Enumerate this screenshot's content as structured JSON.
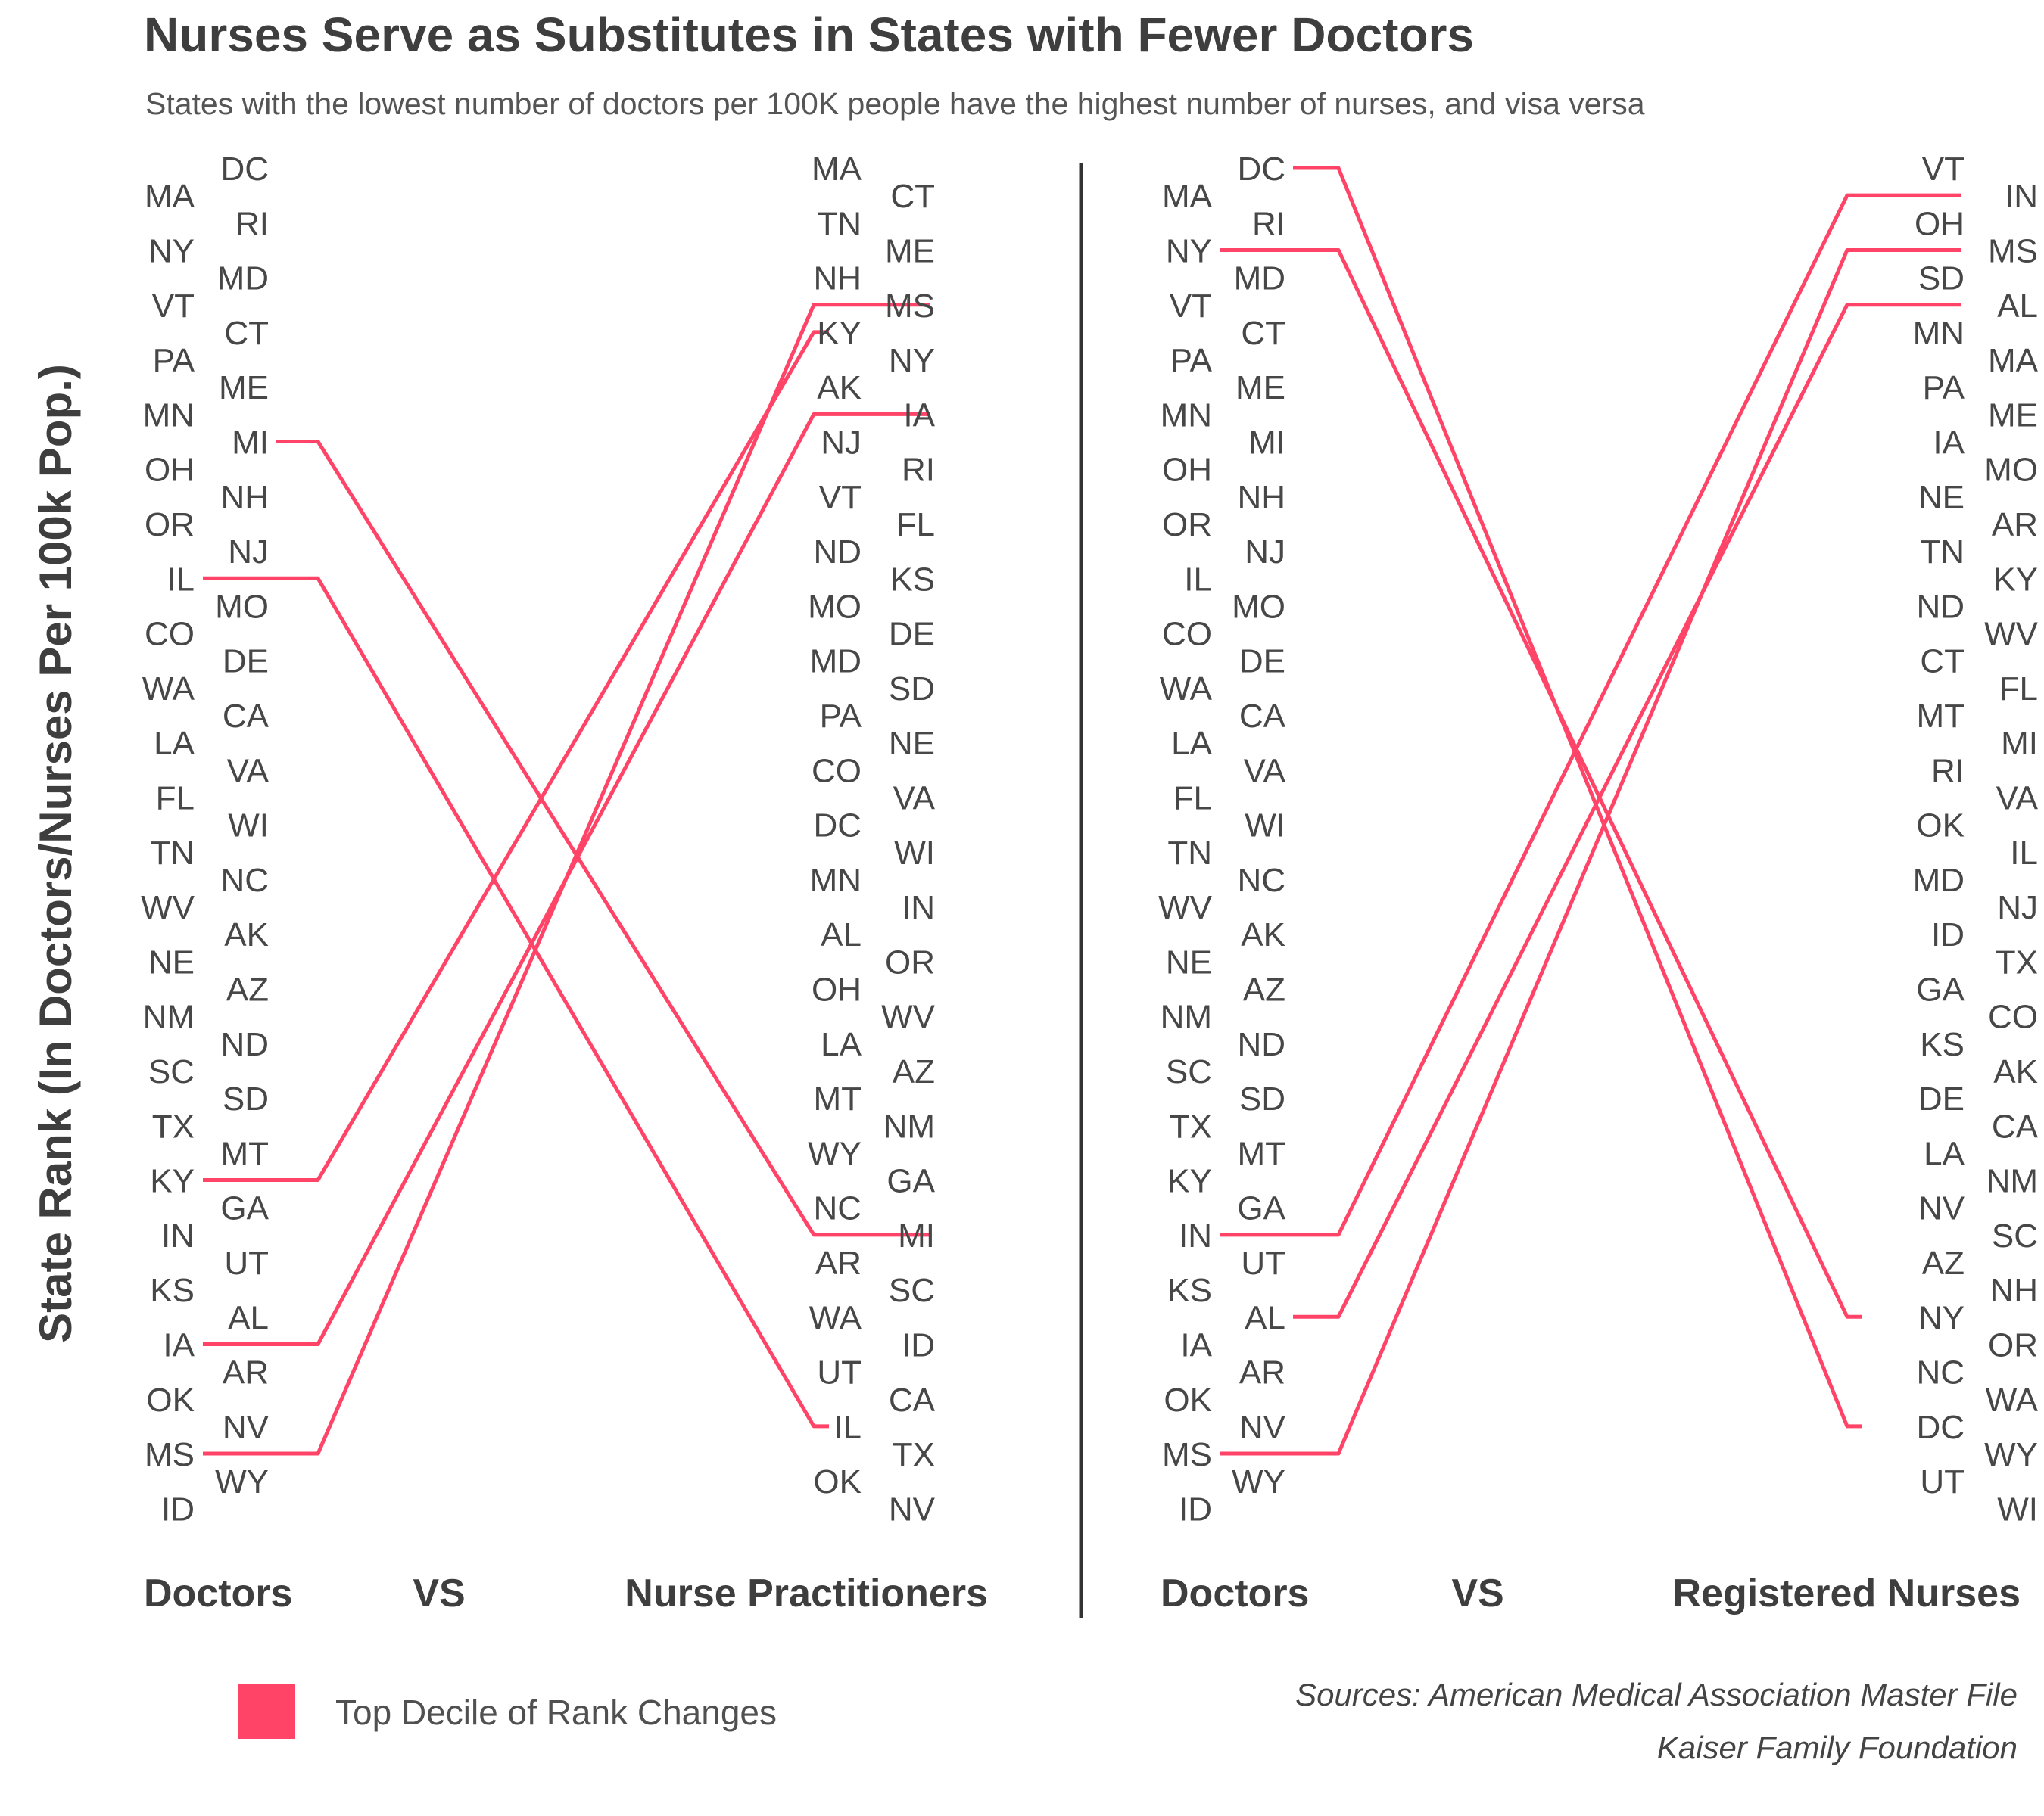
{
  "title": "Nurses Serve as Substitutes in States with Fewer Doctors",
  "subtitle": "States with the lowest number of doctors per 100K people have the highest number of nurses, and visa versa",
  "ylabel": "State Rank (In Doctors/Nurses Per 100k Pop.)",
  "colors": {
    "highlight": "#ff4468",
    "text": "#474747",
    "divider": "#333333"
  },
  "chart_data": [
    {
      "type": "slope",
      "left_label": "Doctors",
      "vs_label": "VS",
      "right_label": "Nurse Practitioners",
      "left_ranking": [
        "DC",
        "MA",
        "RI",
        "NY",
        "MD",
        "VT",
        "CT",
        "PA",
        "ME",
        "MN",
        "MI",
        "OH",
        "NH",
        "OR",
        "NJ",
        "IL",
        "MO",
        "CO",
        "DE",
        "WA",
        "CA",
        "LA",
        "VA",
        "FL",
        "WI",
        "TN",
        "NC",
        "WV",
        "AK",
        "NE",
        "AZ",
        "NM",
        "ND",
        "SC",
        "SD",
        "TX",
        "MT",
        "KY",
        "GA",
        "IN",
        "UT",
        "KS",
        "AL",
        "IA",
        "AR",
        "OK",
        "NV",
        "MS",
        "WY",
        "ID"
      ],
      "right_ranking": [
        "MA",
        "CT",
        "TN",
        "ME",
        "NH",
        "MS",
        "KY",
        "NY",
        "AK",
        "IA",
        "NJ",
        "RI",
        "VT",
        "FL",
        "ND",
        "KS",
        "MO",
        "DE",
        "MD",
        "SD",
        "PA",
        "NE",
        "CO",
        "VA",
        "DC",
        "WI",
        "MN",
        "IN",
        "AL",
        "OR",
        "OH",
        "WV",
        "LA",
        "AZ",
        "MT",
        "NM",
        "WY",
        "GA",
        "NC",
        "MI",
        "AR",
        "SC",
        "WA",
        "ID",
        "UT",
        "CA",
        "IL",
        "TX",
        "OK",
        "NV"
      ],
      "highlighted": [
        "MI",
        "IL",
        "KY",
        "IA",
        "MS"
      ]
    },
    {
      "type": "slope",
      "left_label": "Doctors",
      "vs_label": "VS",
      "right_label": "Registered Nurses",
      "left_ranking": [
        "DC",
        "MA",
        "RI",
        "NY",
        "MD",
        "VT",
        "CT",
        "PA",
        "ME",
        "MN",
        "MI",
        "OH",
        "NH",
        "OR",
        "NJ",
        "IL",
        "MO",
        "CO",
        "DE",
        "WA",
        "CA",
        "LA",
        "VA",
        "FL",
        "WI",
        "TN",
        "NC",
        "WV",
        "AK",
        "NE",
        "AZ",
        "NM",
        "ND",
        "SC",
        "SD",
        "TX",
        "MT",
        "KY",
        "GA",
        "IN",
        "UT",
        "KS",
        "AL",
        "IA",
        "AR",
        "OK",
        "NV",
        "MS",
        "WY",
        "ID"
      ],
      "right_ranking": [
        "VT",
        "IN",
        "OH",
        "MS",
        "SD",
        "AL",
        "MN",
        "MA",
        "PA",
        "ME",
        "IA",
        "MO",
        "NE",
        "AR",
        "TN",
        "KY",
        "ND",
        "WV",
        "CT",
        "FL",
        "MT",
        "MI",
        "RI",
        "VA",
        "OK",
        "IL",
        "MD",
        "NJ",
        "ID",
        "TX",
        "GA",
        "CO",
        "KS",
        "AK",
        "DE",
        "CA",
        "LA",
        "NM",
        "NV",
        "SC",
        "AZ",
        "NH",
        "NY",
        "OR",
        "NC",
        "WA",
        "DC",
        "WY",
        "UT",
        "WI"
      ],
      "highlighted": [
        "DC",
        "NY",
        "IN",
        "AL",
        "MS"
      ]
    }
  ],
  "legend": {
    "label": "Top Decile of Rank Changes"
  },
  "sources": {
    "line1": "Sources: American Medical Association Master File",
    "line2": "Kaiser Family Foundation"
  }
}
